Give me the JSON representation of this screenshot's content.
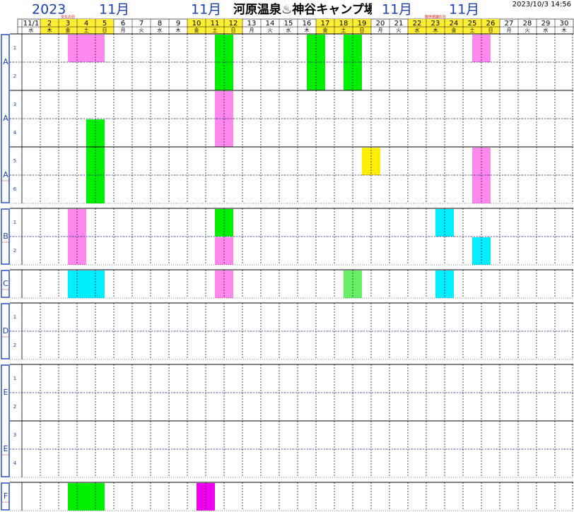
{
  "header": {
    "year": "2023",
    "months": [
      "11月",
      "11月",
      "11月",
      "11月"
    ],
    "title": "河原温泉♨神谷キャンプ場",
    "timestamp": "2023/10/3 14:56"
  },
  "calendar": {
    "days": [
      "11/1",
      "2",
      "3",
      "4",
      "5",
      "6",
      "7",
      "8",
      "9",
      "10",
      "11",
      "12",
      "13",
      "14",
      "15",
      "16",
      "17",
      "18",
      "19",
      "20",
      "21",
      "22",
      "23",
      "24",
      "25",
      "26",
      "27",
      "28",
      "29",
      "30"
    ],
    "weekdays": [
      "水",
      "木",
      "金",
      "土",
      "日",
      "月",
      "火",
      "水",
      "木",
      "金",
      "土",
      "日",
      "月",
      "火",
      "水",
      "木",
      "金",
      "土",
      "日",
      "月",
      "火",
      "水",
      "木",
      "金",
      "土",
      "日",
      "月",
      "火",
      "水",
      "木"
    ],
    "yellow_days": [
      2,
      3,
      4,
      5,
      10,
      11,
      12,
      17,
      18,
      19,
      22,
      23,
      24,
      25,
      26
    ],
    "red_days": [
      3,
      5,
      19,
      23,
      26
    ],
    "holidays": [
      {
        "day": 3,
        "label": "文化の日"
      },
      {
        "day": 23,
        "label": "勤労感謝の日"
      }
    ],
    "rows": [
      "1",
      "2",
      "3",
      "4",
      "5",
      "6",
      "1",
      "2",
      null,
      "1",
      "2",
      "1",
      "2",
      "3",
      "4",
      null
    ],
    "groups": [
      {
        "label": "A",
        "first": 0,
        "count": 2
      },
      {
        "label": "A",
        "first": 2,
        "count": 2
      },
      {
        "label": "A",
        "first": 4,
        "count": 2
      },
      {
        "label": "B",
        "first": 6,
        "count": 2
      },
      {
        "label": "C",
        "first": 8,
        "count": 1
      },
      {
        "label": "D",
        "first": 9,
        "count": 2
      },
      {
        "label": "E",
        "first": 11,
        "count": 2
      },
      {
        "label": "E",
        "first": 13,
        "count": 2
      },
      {
        "label": "F",
        "first": 15,
        "count": 1
      }
    ],
    "bookings": [
      {
        "row": 0,
        "rows": 1,
        "from": 3,
        "to": 5,
        "color": "#ff88ee"
      },
      {
        "row": 0,
        "rows": 2,
        "from": 11,
        "to": 12,
        "color": "#00ee00"
      },
      {
        "row": 0,
        "rows": 2,
        "from": 16,
        "to": 17,
        "color": "#00ee00"
      },
      {
        "row": 0,
        "rows": 2,
        "from": 18,
        "to": 19,
        "color": "#00ee00"
      },
      {
        "row": 0,
        "rows": 1,
        "from": 25,
        "to": 26,
        "color": "#ff88ee"
      },
      {
        "row": 2,
        "rows": 2,
        "from": 11,
        "to": 12,
        "color": "#ff88ee"
      },
      {
        "row": 3,
        "rows": 3,
        "from": 4,
        "to": 5,
        "color": "#00ee00"
      },
      {
        "row": 4,
        "rows": 1,
        "from": 19,
        "to": 20,
        "color": "#ffee00"
      },
      {
        "row": 4,
        "rows": 2,
        "from": 25,
        "to": 26,
        "color": "#ff88ee"
      },
      {
        "row": 6,
        "rows": 2,
        "from": 3,
        "to": 4,
        "color": "#ff88ee"
      },
      {
        "row": 6,
        "rows": 1,
        "from": 11,
        "to": 12,
        "color": "#00ee00"
      },
      {
        "row": 6,
        "rows": 1,
        "from": 23,
        "to": 24,
        "color": "#00eeff"
      },
      {
        "row": 7,
        "rows": 1,
        "from": 11,
        "to": 12,
        "color": "#ff88ee"
      },
      {
        "row": 7,
        "rows": 1,
        "from": 25,
        "to": 26,
        "color": "#00eeff"
      },
      {
        "row": 8,
        "rows": 1,
        "from": 3,
        "to": 5,
        "color": "#00eeff"
      },
      {
        "row": 8,
        "rows": 1,
        "from": 11,
        "to": 12,
        "color": "#ff88ee"
      },
      {
        "row": 8,
        "rows": 1,
        "from": 18,
        "to": 19,
        "color": "#66ee66"
      },
      {
        "row": 8,
        "rows": 1,
        "from": 23,
        "to": 24,
        "color": "#00eeff"
      },
      {
        "row": 15,
        "rows": 1,
        "from": 3,
        "to": 5,
        "color": "#00ee00"
      },
      {
        "row": 15,
        "rows": 1,
        "from": 10,
        "to": 11,
        "color": "#ee00ee"
      }
    ]
  }
}
